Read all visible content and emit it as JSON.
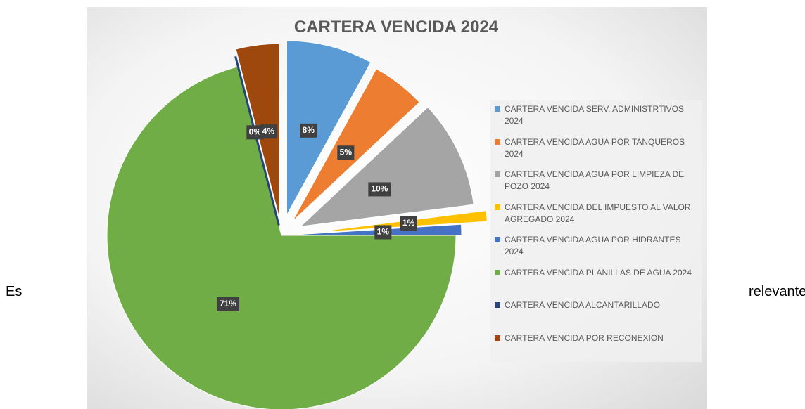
{
  "paragraph": {
    "before": "Es",
    "after": "relevante"
  },
  "chart_data": {
    "type": "pie",
    "title": "CARTERA VENCIDA 2024",
    "categories": [
      "CARTERA VENCIDA SERV. ADMINISTRTIVOS 2024",
      "CARTERA VENCIDA AGUA POR TANQUEROS 2024",
      "CARTERA VENCIDA AGUA POR LIMPIEZA DE POZO 2024",
      "CARTERA VENCIDA DEL IMPUESTO AL VALOR AGREGADO 2024",
      "CARTERA VENCIDA AGUA POR HIDRANTES 2024",
      "CARTERA VENCIDA PLANILLAS DE AGUA 2024",
      "CARTERA VENCIDA ALCANTARILLADO",
      "CARTERA VENCIDA POR RECONEXION"
    ],
    "values": [
      8,
      5,
      10,
      1,
      1,
      71,
      0,
      4
    ],
    "value_labels": [
      "8%",
      "5%",
      "10%",
      "1%",
      "1%",
      "71%",
      "0%",
      "4%"
    ],
    "colors": [
      "#5b9bd5",
      "#ed7d31",
      "#a5a5a5",
      "#ffc000",
      "#4472c4",
      "#70ad47",
      "#264478",
      "#9e480e"
    ],
    "legend": "right"
  }
}
